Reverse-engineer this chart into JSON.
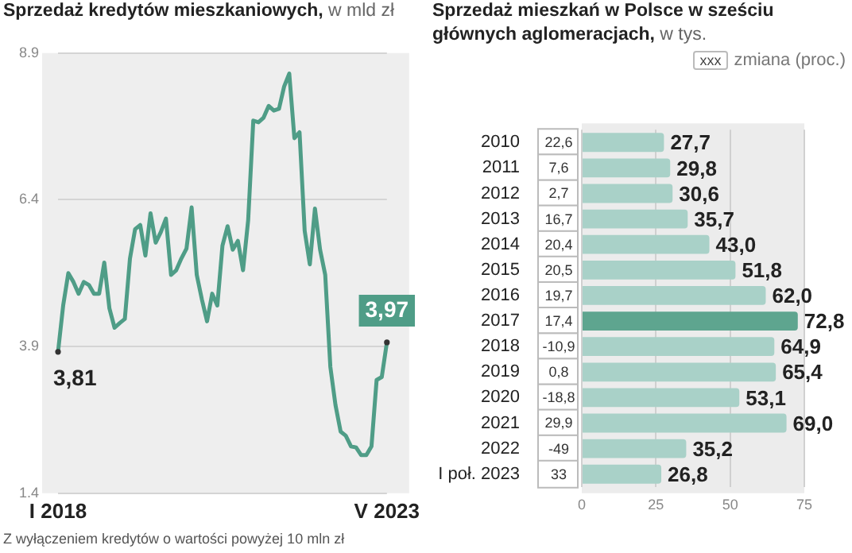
{
  "chart_data": [
    {
      "type": "line",
      "title": "Sprzedaż kredytów mieszkaniowych,",
      "subtitle": "w mld zł",
      "categories": [
        "I 2018",
        null,
        null,
        null,
        null,
        null,
        null,
        null,
        null,
        null,
        null,
        null,
        null,
        null,
        null,
        null,
        null,
        null,
        null,
        null,
        null,
        null,
        null,
        null,
        null,
        null,
        null,
        null,
        null,
        null,
        null,
        null,
        null,
        null,
        null,
        null,
        null,
        null,
        null,
        null,
        null,
        null,
        null,
        null,
        null,
        null,
        null,
        null,
        null,
        null,
        null,
        null,
        null,
        null,
        null,
        null,
        null,
        null,
        null,
        null,
        null,
        null,
        null,
        null,
        "V 2023"
      ],
      "values": [
        3.81,
        4.6,
        5.15,
        5.0,
        4.8,
        5.0,
        4.95,
        4.8,
        4.8,
        5.33,
        4.55,
        4.22,
        4.3,
        4.37,
        5.4,
        5.9,
        5.97,
        5.45,
        6.17,
        5.67,
        5.85,
        6.08,
        5.12,
        5.2,
        5.4,
        5.57,
        6.27,
        5.12,
        4.7,
        4.33,
        4.8,
        4.6,
        5.62,
        5.95,
        5.55,
        5.7,
        5.2,
        6.05,
        7.75,
        7.72,
        7.8,
        8.0,
        7.92,
        7.95,
        8.33,
        8.55,
        7.45,
        7.55,
        5.87,
        5.3,
        6.25,
        5.55,
        5.12,
        3.55,
        2.9,
        2.45,
        2.38,
        2.2,
        2.18,
        2.05,
        2.05,
        2.2,
        3.33,
        3.38,
        3.97
      ],
      "value_labels": [
        "3,81",
        null,
        null,
        null,
        null,
        null,
        null,
        null,
        null,
        null,
        null,
        null,
        null,
        null,
        null,
        null,
        null,
        null,
        null,
        null,
        null,
        null,
        null,
        null,
        null,
        null,
        null,
        null,
        null,
        null,
        null,
        null,
        null,
        null,
        null,
        null,
        null,
        null,
        null,
        null,
        null,
        null,
        null,
        null,
        null,
        null,
        null,
        null,
        null,
        null,
        null,
        null,
        null,
        null,
        null,
        null,
        null,
        null,
        null,
        null,
        null,
        null,
        null,
        null,
        "3,97"
      ],
      "color": "#4f9d87",
      "ylim": [
        1.4,
        8.9
      ],
      "yticks": [
        1.4,
        3.9,
        6.4,
        8.9
      ],
      "grid": "y",
      "marker": "none",
      "annotations": [
        "Z wyłączeniem kredytów o wartości powyżej 10 mln zł"
      ]
    },
    {
      "type": "bar",
      "orientation": "horizontal",
      "title": "Sprzedaż mieszkań w Polsce w sześciu głównych aglomeracjach,",
      "subtitle": "w tys.",
      "legend_title": "zmiana (proc.)",
      "categories": [
        "2010",
        "2011",
        "2012",
        "2013",
        "2014",
        "2015",
        "2016",
        "2017",
        "2018",
        "2019",
        "2020",
        "2021",
        "2022",
        "I poł. 2023"
      ],
      "values": [
        27.7,
        29.8,
        30.6,
        35.7,
        43.0,
        51.8,
        62.0,
        72.8,
        64.9,
        65.4,
        53.1,
        69.0,
        35.2,
        26.8
      ],
      "value_labels": [
        "27,7",
        "29,8",
        "30,6",
        "35,7",
        "43,0",
        "51,8",
        "62,0",
        "72,8",
        "64,9",
        "65,4",
        "53,1",
        "69,0",
        "35,2",
        "26,8"
      ],
      "colors": [
        "#a9d1c8",
        "#a9d1c8",
        "#a9d1c8",
        "#a9d1c8",
        "#a9d1c8",
        "#a9d1c8",
        "#a9d1c8",
        "#5ea58f",
        "#a9d1c8",
        "#a9d1c8",
        "#a9d1c8",
        "#a9d1c8",
        "#a9d1c8",
        "#a9d1c8"
      ],
      "xlim": [
        0,
        75
      ],
      "xticks": [
        0,
        25,
        50,
        75
      ],
      "grid": "x",
      "annotations": [
        "xxx",
        {
          "text": "22,6",
          "y": "2010"
        },
        {
          "text": "7,6",
          "y": "2011"
        },
        {
          "text": "2,7",
          "y": "2012"
        },
        {
          "text": "16,7",
          "y": "2013"
        },
        {
          "text": "20,4",
          "y": "2014"
        },
        {
          "text": "20,5",
          "y": "2015"
        },
        {
          "text": "19,7",
          "y": "2016"
        },
        {
          "text": "17,4",
          "y": "2017"
        },
        {
          "text": "-10,9",
          "y": "2018"
        },
        {
          "text": "0,8",
          "y": "2019"
        },
        {
          "text": "-18,8",
          "y": "2020"
        },
        {
          "text": "29,9",
          "y": "2021"
        },
        {
          "text": "-49",
          "y": "2022"
        },
        {
          "text": "33",
          "y": "I poł. 2023"
        }
      ]
    }
  ]
}
